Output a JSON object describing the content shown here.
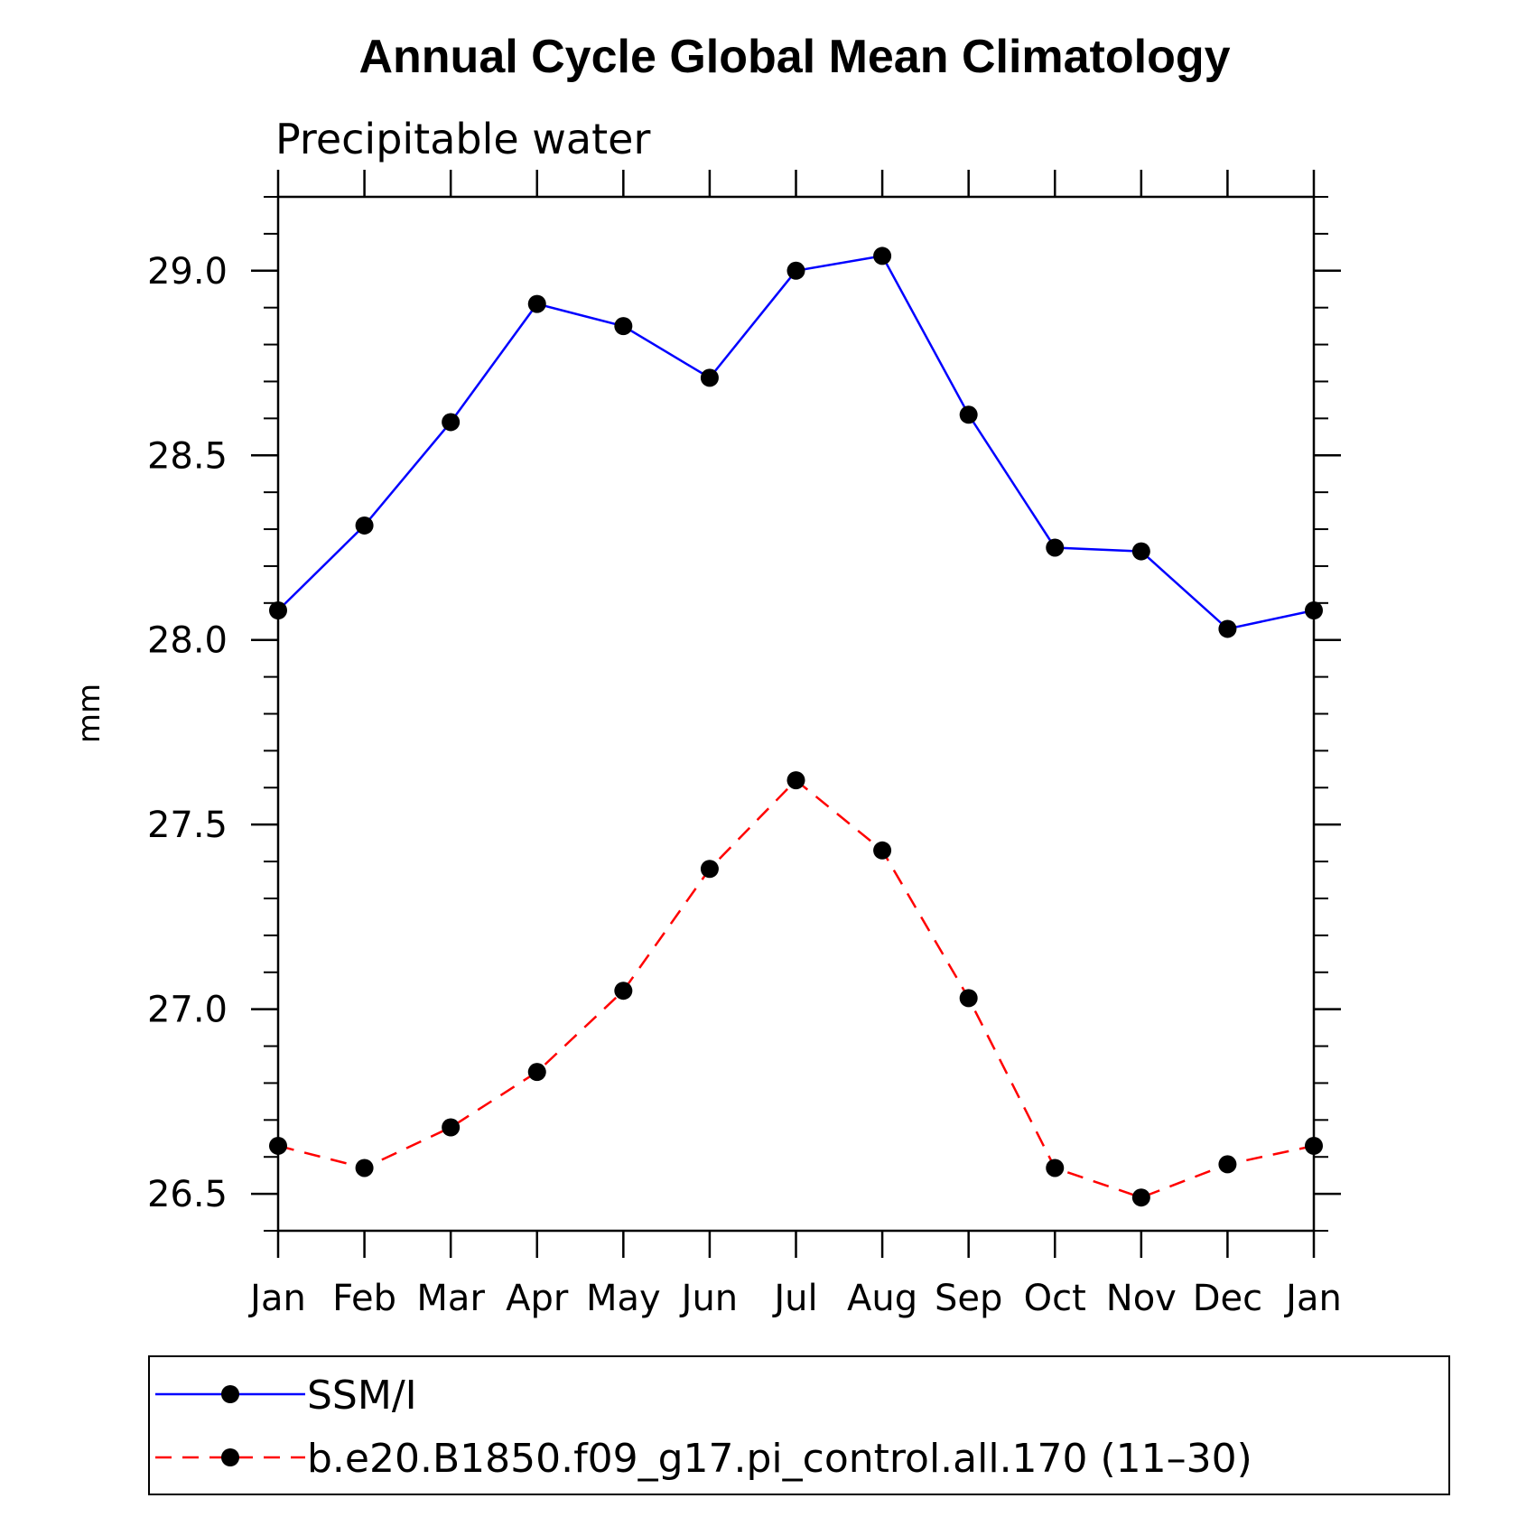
{
  "chart_data": {
    "type": "line",
    "title": "Annual Cycle Global Mean Climatology",
    "subtitle": "Precipitable water",
    "ylabel": "mm",
    "xlabel": "",
    "categories": [
      "Jan",
      "Feb",
      "Mar",
      "Apr",
      "May",
      "Jun",
      "Jul",
      "Aug",
      "Sep",
      "Oct",
      "Nov",
      "Dec",
      "Jan"
    ],
    "ylim": [
      26.4,
      29.2
    ],
    "yticks": [
      26.5,
      27.0,
      27.5,
      28.0,
      28.5,
      29.0
    ],
    "ytick_labels": [
      "26.5",
      "27.0",
      "27.5",
      "28.0",
      "28.5",
      "29.0"
    ],
    "grid": false,
    "legend_position": "bottom",
    "series": [
      {
        "name": "SSM/I",
        "color": "#0000ff",
        "line_style": "solid",
        "marker": "filled-circle",
        "values": [
          28.08,
          28.31,
          28.59,
          28.91,
          28.85,
          28.71,
          29.0,
          29.04,
          28.61,
          28.25,
          28.24,
          28.03,
          28.08
        ]
      },
      {
        "name": "b.e20.B1850.f09_g17.pi_control.all.170 (11–30)",
        "color": "#ff0000",
        "line_style": "dashed",
        "marker": "filled-circle",
        "values": [
          26.63,
          26.57,
          26.68,
          26.83,
          27.05,
          27.38,
          27.62,
          27.43,
          27.03,
          26.57,
          26.49,
          26.58,
          26.63
        ]
      }
    ]
  }
}
